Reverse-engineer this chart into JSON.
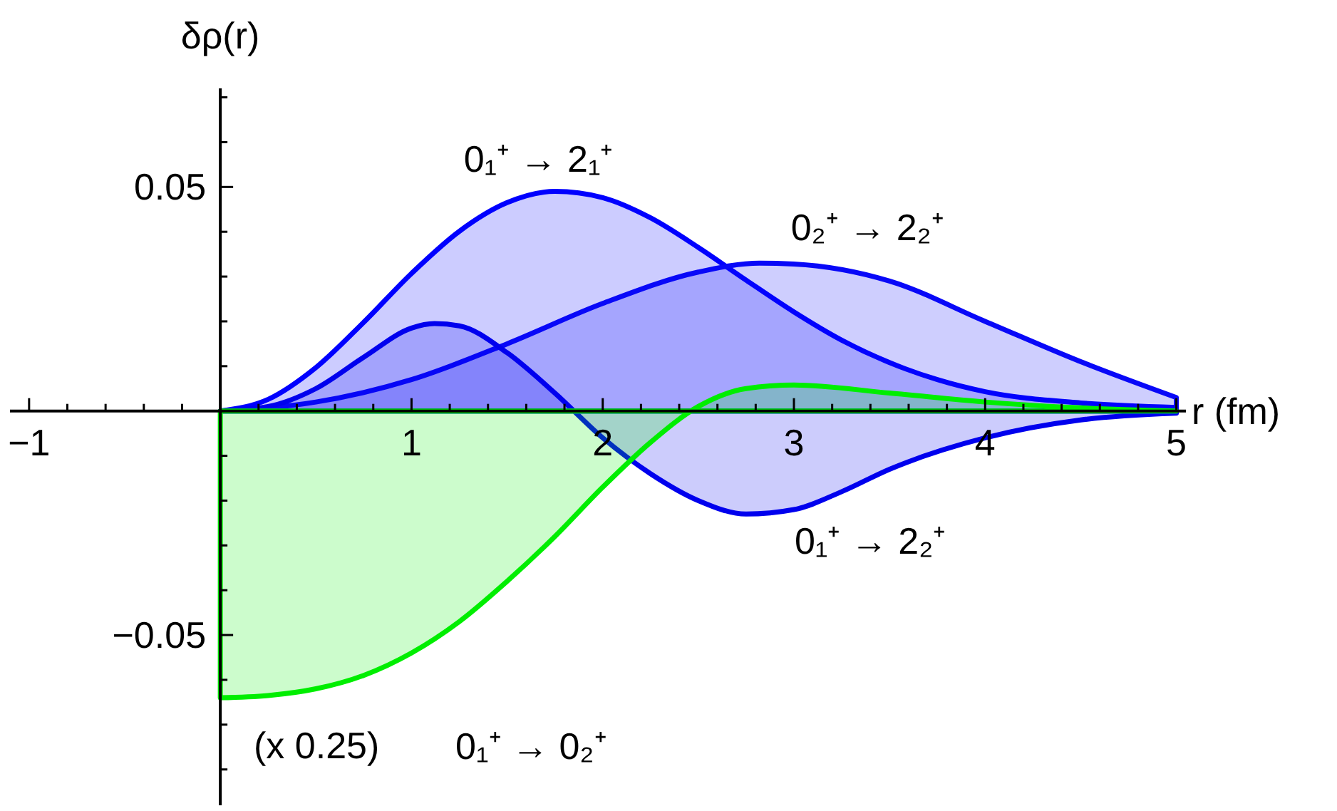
{
  "chart_data": {
    "type": "area",
    "xlabel": "r (fm)",
    "ylabel": "δρ(r)",
    "xlim": [
      -1.1,
      5.05
    ],
    "ylim": [
      -0.088,
      0.072
    ],
    "xticks": [
      {
        "value": -1,
        "label": "−1"
      },
      {
        "value": -0.8,
        "label": null
      },
      {
        "value": -0.6,
        "label": null
      },
      {
        "value": -0.4,
        "label": null
      },
      {
        "value": -0.2,
        "label": null
      },
      {
        "value": 0.2,
        "label": null
      },
      {
        "value": 0.4,
        "label": null
      },
      {
        "value": 0.6,
        "label": null
      },
      {
        "value": 0.8,
        "label": null
      },
      1,
      {
        "value": 1.2,
        "label": null
      },
      {
        "value": 1.4,
        "label": null
      },
      {
        "value": 1.6,
        "label": null
      },
      {
        "value": 1.8,
        "label": null
      },
      2,
      {
        "value": 2.2,
        "label": null
      },
      {
        "value": 2.4,
        "label": null
      },
      {
        "value": 2.6,
        "label": null
      },
      {
        "value": 2.8,
        "label": null
      },
      3,
      {
        "value": 3.2,
        "label": null
      },
      {
        "value": 3.4,
        "label": null
      },
      {
        "value": 3.6,
        "label": null
      },
      {
        "value": 3.8,
        "label": null
      },
      4,
      {
        "value": 4.2,
        "label": null
      },
      {
        "value": 4.4,
        "label": null
      },
      {
        "value": 4.6,
        "label": null
      },
      {
        "value": 4.8,
        "label": null
      },
      5
    ],
    "yticks": [
      {
        "value": -0.08,
        "label": null
      },
      {
        "value": -0.07,
        "label": null
      },
      {
        "value": -0.06,
        "label": null
      },
      {
        "value": -0.05,
        "label": "−0.05"
      },
      {
        "value": -0.04,
        "label": null
      },
      {
        "value": -0.03,
        "label": null
      },
      {
        "value": -0.02,
        "label": null
      },
      {
        "value": -0.01,
        "label": null
      },
      {
        "value": 0.01,
        "label": null
      },
      {
        "value": 0.02,
        "label": null
      },
      {
        "value": 0.03,
        "label": null
      },
      {
        "value": 0.04,
        "label": null
      },
      0.05,
      {
        "value": 0.06,
        "label": null
      },
      {
        "value": 0.07,
        "label": null
      }
    ],
    "series": [
      {
        "name": "0₁⁺ → 2₁⁺",
        "color": "#0000ff",
        "x": [
          0,
          0.25,
          0.5,
          0.75,
          1,
          1.25,
          1.5,
          1.75,
          2,
          2.25,
          2.5,
          2.75,
          3,
          3.25,
          3.5,
          3.75,
          4,
          4.5,
          5
        ],
        "values": [
          0,
          0.0026,
          0.0097,
          0.0198,
          0.0307,
          0.0401,
          0.0465,
          0.049,
          0.0476,
          0.0431,
          0.0365,
          0.0292,
          0.0221,
          0.0158,
          0.0108,
          0.007,
          0.0043,
          0.0018,
          0.0008
        ]
      },
      {
        "name": "0₂⁺ → 2₂⁺",
        "color": "#0808f8",
        "x": [
          0,
          0.5,
          1,
          1.5,
          2,
          2.5,
          2.82,
          3,
          3.5,
          4,
          4.5,
          5
        ],
        "values": [
          0,
          0.002,
          0.007,
          0.015,
          0.024,
          0.031,
          0.033,
          0.0328,
          0.029,
          0.02,
          0.011,
          0.003
        ]
      },
      {
        "name": "0₁⁺ → 2₂⁺",
        "color": "#0000ee",
        "x": [
          0,
          0.25,
          0.5,
          0.75,
          1,
          1.12,
          1.25,
          1.5,
          1.75,
          2,
          2.25,
          2.5,
          2.75,
          3,
          3.25,
          3.5,
          4,
          4.5,
          5
        ],
        "values": [
          0,
          0.001,
          0.005,
          0.012,
          0.0185,
          0.0195,
          0.019,
          0.013,
          0.004,
          -0.006,
          -0.014,
          -0.02,
          -0.023,
          -0.022,
          -0.018,
          -0.013,
          -0.006,
          -0.002,
          -0.0005
        ]
      },
      {
        "name": "0₁⁺ → 0₂⁺",
        "color": "#00ee00",
        "x": [
          0,
          0.25,
          0.5,
          0.75,
          1,
          1.25,
          1.5,
          1.75,
          2,
          2.25,
          2.5,
          2.75,
          3,
          3.5,
          4,
          4.5,
          5
        ],
        "values": [
          -0.064,
          -0.0635,
          -0.062,
          -0.059,
          -0.054,
          -0.047,
          -0.038,
          -0.028,
          -0.017,
          -0.007,
          0.001,
          0.005,
          0.0058,
          0.004,
          0.002,
          0.0007,
          0
        ]
      }
    ],
    "annotations": [
      "(x 0.25)"
    ]
  }
}
